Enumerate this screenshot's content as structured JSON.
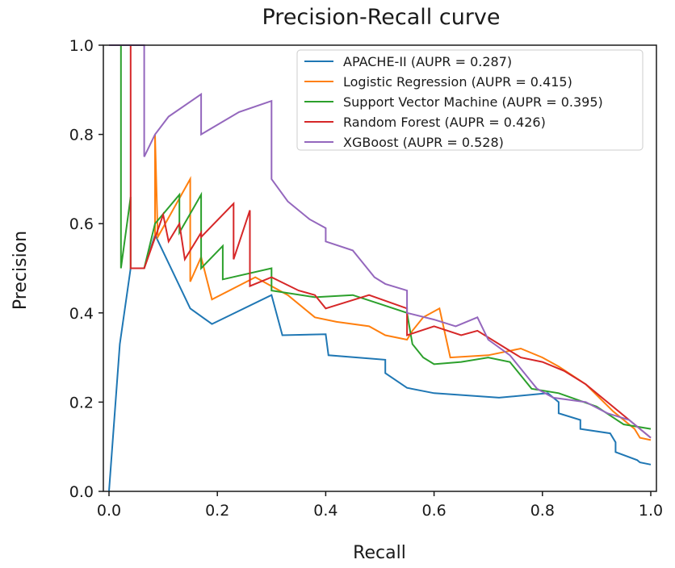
{
  "chart_data": {
    "type": "line",
    "title": "Precision-Recall curve",
    "xlabel": "Recall",
    "ylabel": "Precision",
    "xlim": [
      0.0,
      1.0
    ],
    "ylim": [
      0.0,
      1.0
    ],
    "x_ticks": [
      "0.0",
      "0.2",
      "0.4",
      "0.6",
      "0.8",
      "1.0"
    ],
    "y_ticks": [
      "0.0",
      "0.2",
      "0.4",
      "0.6",
      "0.8",
      "1.0"
    ],
    "grid": false,
    "legend_position": "top-right",
    "series": [
      {
        "name": "APACHE-II (AUPR = 0.287)",
        "color": "#1f77b4",
        "points": [
          [
            0.0,
            0.0
          ],
          [
            0.02,
            0.33
          ],
          [
            0.04,
            0.5
          ],
          [
            0.065,
            0.5
          ],
          [
            0.085,
            0.575
          ],
          [
            0.15,
            0.41
          ],
          [
            0.19,
            0.375
          ],
          [
            0.3,
            0.44
          ],
          [
            0.32,
            0.35
          ],
          [
            0.4,
            0.352
          ],
          [
            0.405,
            0.305
          ],
          [
            0.51,
            0.295
          ],
          [
            0.51,
            0.265
          ],
          [
            0.55,
            0.232
          ],
          [
            0.6,
            0.22
          ],
          [
            0.72,
            0.21
          ],
          [
            0.81,
            0.22
          ],
          [
            0.83,
            0.2
          ],
          [
            0.83,
            0.175
          ],
          [
            0.87,
            0.16
          ],
          [
            0.87,
            0.14
          ],
          [
            0.925,
            0.13
          ],
          [
            0.935,
            0.11
          ],
          [
            0.935,
            0.088
          ],
          [
            0.975,
            0.07
          ],
          [
            0.98,
            0.065
          ],
          [
            1.0,
            0.06
          ]
        ]
      },
      {
        "name": "Logistic Regression (AUPR = 0.415)",
        "color": "#ff7f0e",
        "points": [
          [
            0.065,
            0.5
          ],
          [
            0.085,
            0.57
          ],
          [
            0.085,
            0.8
          ],
          [
            0.09,
            0.57
          ],
          [
            0.15,
            0.7
          ],
          [
            0.15,
            0.47
          ],
          [
            0.17,
            0.525
          ],
          [
            0.19,
            0.43
          ],
          [
            0.27,
            0.48
          ],
          [
            0.33,
            0.44
          ],
          [
            0.36,
            0.41
          ],
          [
            0.38,
            0.39
          ],
          [
            0.42,
            0.38
          ],
          [
            0.48,
            0.37
          ],
          [
            0.51,
            0.35
          ],
          [
            0.55,
            0.34
          ],
          [
            0.56,
            0.36
          ],
          [
            0.58,
            0.39
          ],
          [
            0.61,
            0.41
          ],
          [
            0.63,
            0.3
          ],
          [
            0.7,
            0.305
          ],
          [
            0.76,
            0.32
          ],
          [
            0.8,
            0.3
          ],
          [
            0.83,
            0.28
          ],
          [
            0.88,
            0.24
          ],
          [
            0.93,
            0.18
          ],
          [
            0.97,
            0.14
          ],
          [
            0.98,
            0.12
          ],
          [
            1.0,
            0.115
          ]
        ]
      },
      {
        "name": "Support Vector Machine (AUPR = 0.395)",
        "color": "#2ca02c",
        "points": [
          [
            0.0,
            1.0
          ],
          [
            0.022,
            1.0
          ],
          [
            0.022,
            0.5
          ],
          [
            0.04,
            0.66
          ],
          [
            0.04,
            0.5
          ],
          [
            0.065,
            0.5
          ],
          [
            0.085,
            0.6
          ],
          [
            0.13,
            0.665
          ],
          [
            0.13,
            0.58
          ],
          [
            0.17,
            0.665
          ],
          [
            0.17,
            0.5
          ],
          [
            0.21,
            0.55
          ],
          [
            0.21,
            0.475
          ],
          [
            0.3,
            0.5
          ],
          [
            0.3,
            0.45
          ],
          [
            0.38,
            0.435
          ],
          [
            0.45,
            0.44
          ],
          [
            0.5,
            0.42
          ],
          [
            0.55,
            0.4
          ],
          [
            0.56,
            0.33
          ],
          [
            0.58,
            0.3
          ],
          [
            0.6,
            0.285
          ],
          [
            0.65,
            0.29
          ],
          [
            0.7,
            0.3
          ],
          [
            0.74,
            0.29
          ],
          [
            0.78,
            0.23
          ],
          [
            0.83,
            0.22
          ],
          [
            0.9,
            0.19
          ],
          [
            0.95,
            0.15
          ],
          [
            1.0,
            0.14
          ]
        ]
      },
      {
        "name": "Random Forest (AUPR = 0.426)",
        "color": "#d62728",
        "points": [
          [
            0.0,
            1.0
          ],
          [
            0.04,
            1.0
          ],
          [
            0.04,
            0.5
          ],
          [
            0.065,
            0.5
          ],
          [
            0.1,
            0.62
          ],
          [
            0.11,
            0.56
          ],
          [
            0.13,
            0.6
          ],
          [
            0.14,
            0.52
          ],
          [
            0.17,
            0.58
          ],
          [
            0.17,
            0.57
          ],
          [
            0.23,
            0.645
          ],
          [
            0.23,
            0.52
          ],
          [
            0.26,
            0.63
          ],
          [
            0.26,
            0.46
          ],
          [
            0.3,
            0.48
          ],
          [
            0.35,
            0.45
          ],
          [
            0.38,
            0.44
          ],
          [
            0.4,
            0.41
          ],
          [
            0.48,
            0.44
          ],
          [
            0.55,
            0.41
          ],
          [
            0.55,
            0.35
          ],
          [
            0.6,
            0.37
          ],
          [
            0.65,
            0.35
          ],
          [
            0.68,
            0.36
          ],
          [
            0.72,
            0.33
          ],
          [
            0.76,
            0.3
          ],
          [
            0.8,
            0.29
          ],
          [
            0.84,
            0.27
          ],
          [
            0.88,
            0.24
          ],
          [
            0.92,
            0.2
          ],
          [
            0.96,
            0.16
          ],
          [
            1.0,
            0.12
          ]
        ]
      },
      {
        "name": "XGBoost (AUPR = 0.528)",
        "color": "#9467bd",
        "points": [
          [
            0.0,
            1.0
          ],
          [
            0.065,
            1.0
          ],
          [
            0.065,
            0.75
          ],
          [
            0.085,
            0.8
          ],
          [
            0.11,
            0.84
          ],
          [
            0.17,
            0.89
          ],
          [
            0.17,
            0.8
          ],
          [
            0.24,
            0.85
          ],
          [
            0.3,
            0.875
          ],
          [
            0.3,
            0.7
          ],
          [
            0.33,
            0.65
          ],
          [
            0.34,
            0.64
          ],
          [
            0.37,
            0.61
          ],
          [
            0.4,
            0.59
          ],
          [
            0.4,
            0.56
          ],
          [
            0.45,
            0.54
          ],
          [
            0.49,
            0.48
          ],
          [
            0.51,
            0.465
          ],
          [
            0.55,
            0.45
          ],
          [
            0.55,
            0.4
          ],
          [
            0.6,
            0.385
          ],
          [
            0.64,
            0.37
          ],
          [
            0.68,
            0.39
          ],
          [
            0.7,
            0.34
          ],
          [
            0.74,
            0.305
          ],
          [
            0.77,
            0.26
          ],
          [
            0.79,
            0.23
          ],
          [
            0.82,
            0.21
          ],
          [
            0.88,
            0.2
          ],
          [
            0.92,
            0.175
          ],
          [
            0.96,
            0.16
          ],
          [
            1.0,
            0.12
          ]
        ]
      }
    ]
  }
}
